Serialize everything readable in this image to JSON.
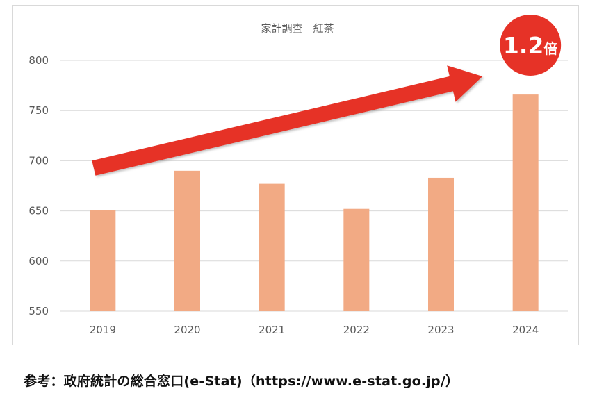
{
  "chart_data": {
    "type": "bar",
    "title": "家計調査　紅茶",
    "categories": [
      "2019",
      "2020",
      "2021",
      "2022",
      "2023",
      "2024"
    ],
    "values": [
      651,
      690,
      677,
      652,
      683,
      766
    ],
    "ylim": [
      550,
      800
    ],
    "yticks": [
      "550",
      "600",
      "650",
      "700",
      "750",
      "800"
    ],
    "grid": true,
    "bar_color": "#f2aa84",
    "annotation": {
      "badge_number": "1.2",
      "badge_suffix": "倍",
      "badge_color": "#e63227",
      "arrow_color": "#e63227",
      "arrow_from": "2019",
      "arrow_to": "2024"
    }
  },
  "source_note": "参考：政府統計の総合窓口(e-Stat)（https://www.e-stat.go.jp/）"
}
